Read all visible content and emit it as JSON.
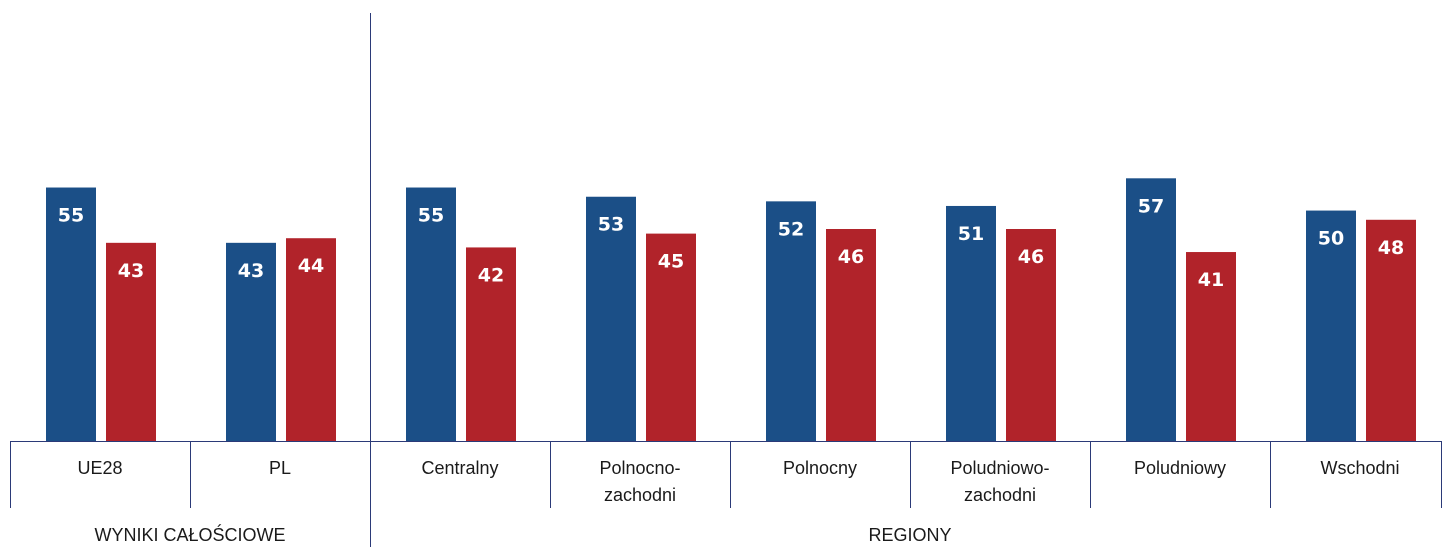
{
  "chart_data": {
    "type": "bar",
    "categories": [
      "UE28",
      "PL",
      "Centralny",
      "Polnocno-zachodni",
      "Polnocny",
      "Poludniowo-zachodni",
      "Poludniowy",
      "Wschodni"
    ],
    "category_lines": [
      [
        "UE28"
      ],
      [
        "PL"
      ],
      [
        "Centralny"
      ],
      [
        "Polnocno-",
        "zachodni"
      ],
      [
        "Polnocny"
      ],
      [
        "Poludniowo-",
        "zachodni"
      ],
      [
        "Poludniowy"
      ],
      [
        "Wschodni"
      ]
    ],
    "series": [
      {
        "values": [
          55,
          43,
          55,
          53,
          52,
          51,
          57,
          50
        ],
        "color": "#1b4f87"
      },
      {
        "values": [
          43,
          44,
          42,
          45,
          46,
          46,
          41,
          48
        ],
        "color": "#b1232a"
      }
    ],
    "groups": [
      {
        "label": "WYNIKI CAŁOŚCIOWE",
        "categories": [
          "UE28",
          "PL"
        ]
      },
      {
        "label": "REGIONY",
        "categories": [
          "Centralny",
          "Polnocno-zachodni",
          "Polnocny",
          "Poludniowo-zachodni",
          "Poludniowy",
          "Wschodni"
        ]
      }
    ],
    "ylim": [
      0,
      92
    ],
    "title": "",
    "xlabel": "",
    "ylabel": "",
    "grid": false,
    "axis_color": "#2b3a78"
  }
}
